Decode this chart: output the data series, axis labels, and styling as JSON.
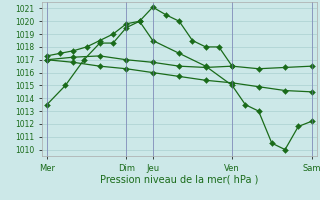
{
  "xlabel": "Pression niveau de la mer( hPa )",
  "bg_color": "#cce8e8",
  "grid_color": "#aad0d0",
  "line_color": "#1a6b1a",
  "ylim": [
    1009.5,
    1021.5
  ],
  "yticks": [
    1010,
    1011,
    1012,
    1013,
    1014,
    1015,
    1016,
    1017,
    1018,
    1019,
    1020,
    1021
  ],
  "xtick_positions": [
    0,
    3,
    4,
    7,
    10
  ],
  "xtick_labels": [
    "Mer",
    "Dim",
    "Jeu",
    "Ven",
    "Sam"
  ],
  "vlines_x": [
    0,
    3,
    4,
    7,
    10
  ],
  "vline_color": "#7070b0",
  "line1_x": [
    0,
    0.7,
    1.4,
    2.0,
    2.5,
    3.0,
    3.5,
    4.0,
    4.5,
    5.0,
    5.5,
    6.0,
    6.5,
    7.0
  ],
  "line1_y": [
    1013.5,
    1015.0,
    1017.0,
    1018.3,
    1018.3,
    1019.5,
    1020.0,
    1021.1,
    1020.5,
    1020.0,
    1018.5,
    1018.0,
    1018.0,
    1016.5
  ],
  "line2_x": [
    0,
    1.0,
    2.0,
    3.0,
    4.0,
    5.0,
    6.0,
    7.0,
    8.0,
    9.0,
    10.0
  ],
  "line2_y": [
    1017.0,
    1017.2,
    1017.3,
    1017.0,
    1016.8,
    1016.5,
    1016.4,
    1016.5,
    1016.3,
    1016.4,
    1016.5
  ],
  "line3_x": [
    0,
    1.0,
    2.0,
    3.0,
    4.0,
    5.0,
    6.0,
    7.0,
    8.0,
    9.0,
    10.0
  ],
  "line3_y": [
    1017.0,
    1016.8,
    1016.5,
    1016.3,
    1016.0,
    1015.7,
    1015.4,
    1015.2,
    1014.9,
    1014.6,
    1014.5
  ],
  "line4_x": [
    0,
    0.5,
    1.0,
    1.5,
    2.0,
    2.5,
    3.0,
    3.5,
    4.0,
    5.0,
    6.0,
    7.0,
    7.5,
    8.0,
    8.5,
    9.0,
    9.5,
    10.0
  ],
  "line4_y": [
    1017.3,
    1017.5,
    1017.7,
    1018.0,
    1018.5,
    1019.0,
    1019.8,
    1020.0,
    1018.5,
    1017.5,
    1016.5,
    1015.0,
    1013.5,
    1013.0,
    1010.5,
    1010.0,
    1011.8,
    1012.2
  ],
  "marker_size": 3
}
